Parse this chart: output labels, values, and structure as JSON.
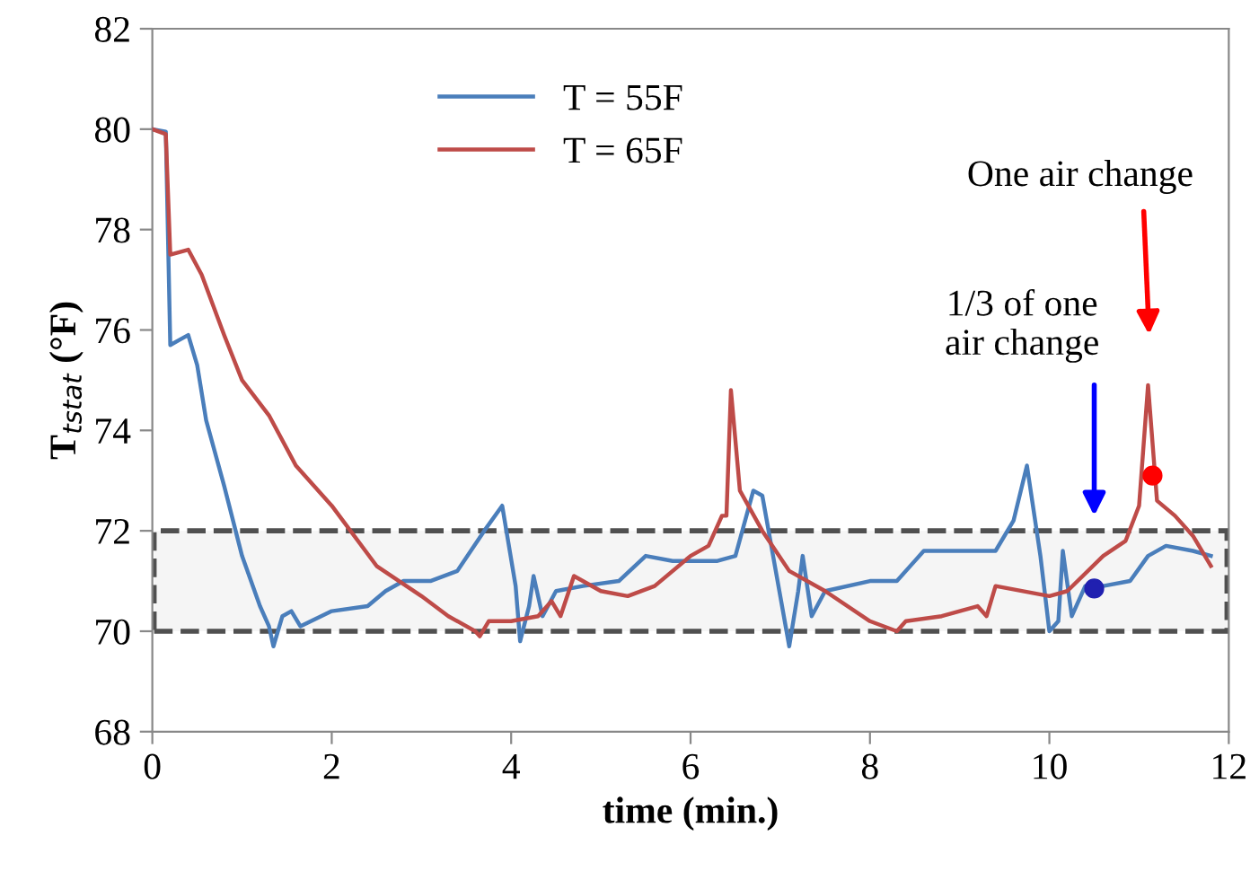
{
  "chart_data": {
    "type": "line",
    "xlabel": "time (min.)",
    "ylabel": "T$_{tstat}$ (°F)",
    "xlim": [
      0,
      12
    ],
    "xticks": [
      0,
      2,
      4,
      6,
      8,
      10,
      12
    ],
    "ylim": [
      68,
      82
    ],
    "yticks": [
      68,
      70,
      72,
      74,
      76,
      78,
      80,
      82
    ],
    "grid": false,
    "legend": "top",
    "marker": "none",
    "line_style": "solid",
    "series": [
      {
        "name": "T = 55F",
        "color": "#4a7ebb",
        "x": [
          0,
          0.15,
          0.2,
          0.3,
          0.4,
          0.5,
          0.6,
          0.8,
          1.0,
          1.2,
          1.3,
          1.35,
          1.45,
          1.55,
          1.65,
          2.0,
          2.4,
          2.6,
          2.8,
          3.1,
          3.4,
          3.7,
          3.9,
          4.05,
          4.1,
          4.2,
          4.25,
          4.35,
          4.5,
          4.8,
          5.2,
          5.5,
          5.8,
          6.3,
          6.5,
          6.7,
          6.8,
          6.95,
          7.1,
          7.2,
          7.25,
          7.35,
          7.5,
          8.0,
          8.3,
          8.6,
          9.0,
          9.4,
          9.6,
          9.75,
          9.9,
          10.0,
          10.1,
          10.15,
          10.25,
          10.4,
          10.6,
          10.9,
          11.1,
          11.3,
          11.6,
          11.8
        ],
        "values": [
          80,
          79.95,
          75.7,
          75.8,
          75.9,
          75.3,
          74.2,
          72.9,
          71.5,
          70.5,
          70.1,
          69.7,
          70.3,
          70.4,
          70.1,
          70.4,
          70.5,
          70.8,
          71.0,
          71.0,
          71.2,
          72.0,
          72.5,
          70.9,
          69.8,
          70.5,
          71.1,
          70.3,
          70.8,
          70.9,
          71.0,
          71.5,
          71.4,
          71.4,
          71.5,
          72.8,
          72.7,
          71.2,
          69.7,
          70.8,
          71.5,
          70.3,
          70.8,
          71.0,
          71.0,
          71.6,
          71.6,
          71.6,
          72.2,
          73.3,
          71.5,
          70.0,
          70.2,
          71.6,
          70.3,
          70.9,
          70.9,
          71.0,
          71.5,
          71.7,
          71.6,
          71.5
        ]
      },
      {
        "name": "T = 65F",
        "color": "#be4b48",
        "x": [
          0,
          0.15,
          0.2,
          0.4,
          0.55,
          0.8,
          1.0,
          1.3,
          1.6,
          2.0,
          2.5,
          3.0,
          3.3,
          3.6,
          3.65,
          3.75,
          4.0,
          4.3,
          4.45,
          4.55,
          4.7,
          5.0,
          5.3,
          5.6,
          6.0,
          6.2,
          6.35,
          6.4,
          6.45,
          6.55,
          6.8,
          7.1,
          7.5,
          8.0,
          8.3,
          8.4,
          8.8,
          9.2,
          9.3,
          9.4,
          10.0,
          10.2,
          10.6,
          10.85,
          11.0,
          11.1,
          11.2,
          11.4,
          11.6,
          11.8
        ],
        "values": [
          80,
          79.9,
          77.5,
          77.6,
          77.1,
          75.9,
          75.0,
          74.3,
          73.3,
          72.5,
          71.3,
          70.7,
          70.3,
          70.0,
          69.9,
          70.2,
          70.2,
          70.3,
          70.6,
          70.3,
          71.1,
          70.8,
          70.7,
          70.9,
          71.5,
          71.7,
          72.3,
          72.3,
          74.8,
          72.8,
          72.0,
          71.2,
          70.8,
          70.2,
          70.0,
          70.2,
          70.3,
          70.5,
          70.3,
          70.9,
          70.7,
          70.8,
          71.5,
          71.8,
          72.5,
          74.9,
          72.6,
          72.3,
          71.9,
          71.3
        ]
      },
      {
        "type": "scatter",
        "color": "#2020b0",
        "marker": "circle",
        "x": [
          10.5
        ],
        "values": [
          70.85
        ]
      },
      {
        "type": "scatter",
        "color": "#ff0000",
        "marker": "circle",
        "x": [
          11.15
        ],
        "values": [
          73.1
        ]
      }
    ],
    "bands": [
      {
        "axis": "y",
        "from": 70,
        "to": 72,
        "color": "#505050"
      }
    ],
    "annotations": [
      "1/3 of one\nair change",
      "One air change"
    ]
  }
}
